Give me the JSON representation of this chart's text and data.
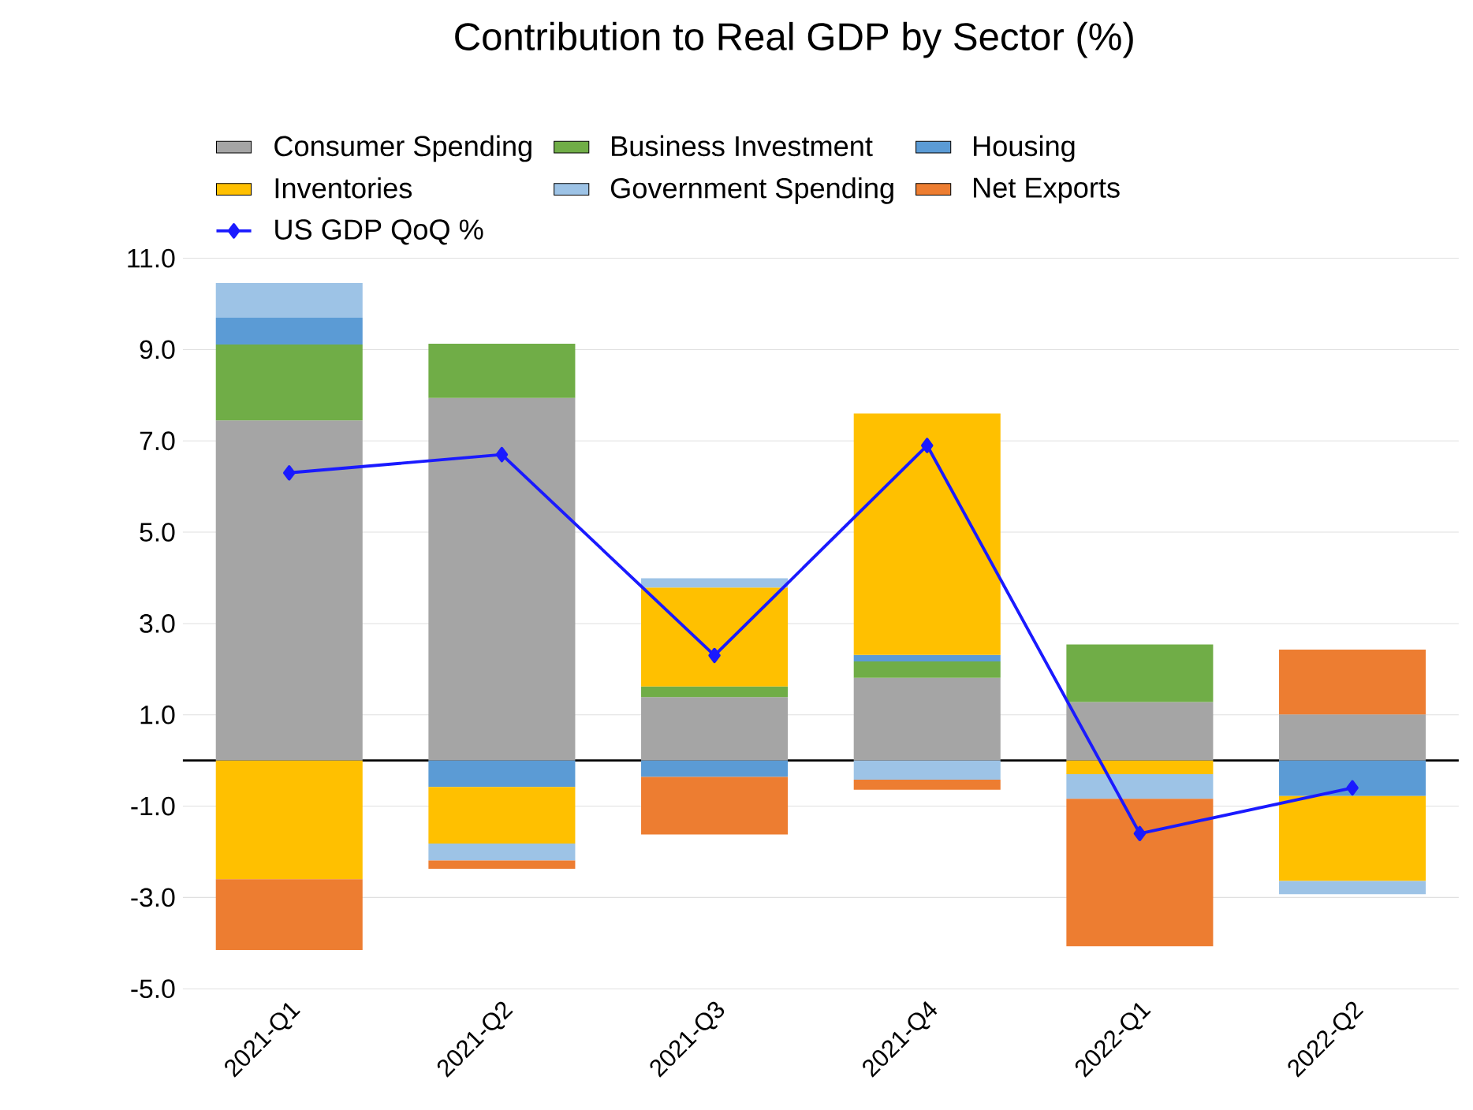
{
  "chart_data": {
    "type": "bar",
    "title": "Contribution to Real GDP by Sector (%)",
    "categories": [
      "2021-Q1",
      "2021-Q2",
      "2021-Q3",
      "2021-Q4",
      "2022-Q1",
      "2022-Q2"
    ],
    "stacked": true,
    "series": [
      {
        "name": "Consumer Spending",
        "color": "#a5a5a5",
        "values": [
          7.45,
          7.94,
          1.39,
          1.81,
          1.28,
          1.01
        ]
      },
      {
        "name": "Business Investment",
        "color": "#70ad47",
        "values": [
          1.66,
          1.19,
          0.23,
          0.36,
          1.26,
          null
        ]
      },
      {
        "name": "Housing",
        "color": "#5b9bd5",
        "values": [
          0.59,
          -0.58,
          -0.36,
          0.14,
          null,
          -0.78
        ]
      },
      {
        "name": "Inventories",
        "color": "#ffc000",
        "values": [
          -2.6,
          -1.24,
          2.17,
          5.29,
          -0.3,
          -1.86
        ]
      },
      {
        "name": "Government Spending",
        "color": "#9dc3e6",
        "values": [
          0.76,
          -0.37,
          0.2,
          -0.42,
          -0.54,
          -0.29
        ]
      },
      {
        "name": "Net Exports",
        "color": "#ed7d31",
        "values": [
          -1.55,
          -0.18,
          -1.26,
          -0.22,
          -3.23,
          1.42
        ]
      },
      {
        "name": "US GDP QoQ %",
        "type": "line",
        "color": "#1a1aff",
        "marker": "diamond",
        "line_style": "solid",
        "values": [
          6.3,
          6.7,
          2.3,
          6.9,
          -1.6,
          -0.6
        ]
      }
    ],
    "ylim": [
      -5,
      11
    ],
    "yticks": [
      {
        "value": -5,
        "label": "-5.0"
      },
      {
        "value": -3,
        "label": "-3.0"
      },
      {
        "value": -1,
        "label": "-1.0"
      },
      {
        "value": 1,
        "label": "1.0"
      },
      {
        "value": 3,
        "label": "3.0"
      },
      {
        "value": 5,
        "label": "5.0"
      },
      {
        "value": 7,
        "label": "7.0"
      },
      {
        "value": 9,
        "label": "9.0"
      },
      {
        "value": 11,
        "label": "11.0"
      }
    ],
    "ref_lines": [
      {
        "axis": "y",
        "value": 0,
        "color": "#000000"
      }
    ],
    "grid": "y",
    "legend": "top"
  }
}
